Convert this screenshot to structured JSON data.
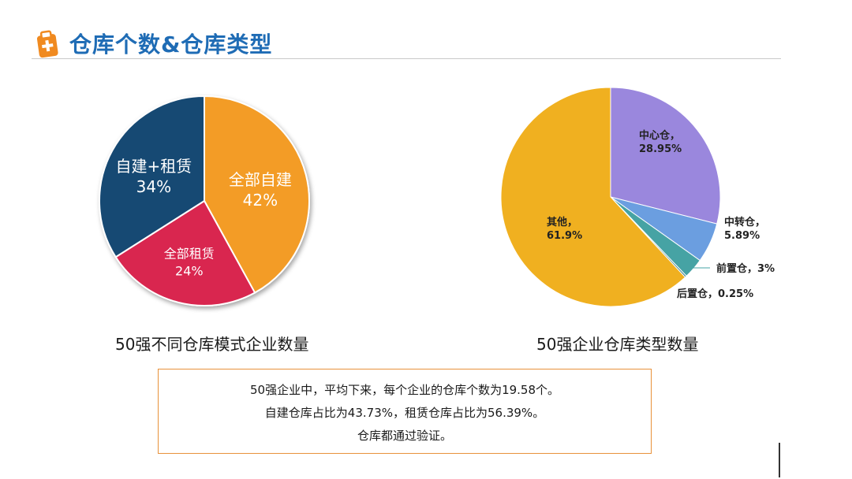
{
  "header": {
    "title": "仓库个数&仓库类型",
    "icon": "clipboard-icon",
    "accent_color": "#1f6cb5"
  },
  "chart_data": [
    {
      "type": "pie",
      "title": "50强不同仓库模式企业数量",
      "slices": [
        {
          "label": "全部自建",
          "value": 42,
          "display": "42%",
          "color": "#f39c27"
        },
        {
          "label": "全部租赁",
          "value": 24,
          "display": "24%",
          "color": "#d9264f"
        },
        {
          "label": "自建+租赁",
          "value": 34,
          "display": "34%",
          "color": "#184873"
        }
      ]
    },
    {
      "type": "pie",
      "title": "50强企业仓库类型数量",
      "slices": [
        {
          "label": "中心仓，",
          "value": 28.95,
          "display": "28.95%",
          "color": "#9a87dd"
        },
        {
          "label": "中转仓，",
          "value": 5.89,
          "display": "5.89%",
          "color": "#6b9ee0"
        },
        {
          "label": "前置仓，",
          "value": 3,
          "display": "3%",
          "color": "#46a3a4"
        },
        {
          "label": "后置仓，",
          "value": 0.25,
          "display": "0.25%",
          "color": "#2f7a8a"
        },
        {
          "label": "其他，",
          "value": 61.9,
          "display": "61.9%",
          "color": "#f0b020"
        }
      ]
    }
  ],
  "summary": {
    "line1": "50强企业中，平均下来，每个企业的仓库个数为19.58个。",
    "line2": "自建仓库占比为43.73%，租赁仓库占比为56.39%。",
    "line3": "仓库都通过验证。",
    "border_color": "#e8913a"
  }
}
